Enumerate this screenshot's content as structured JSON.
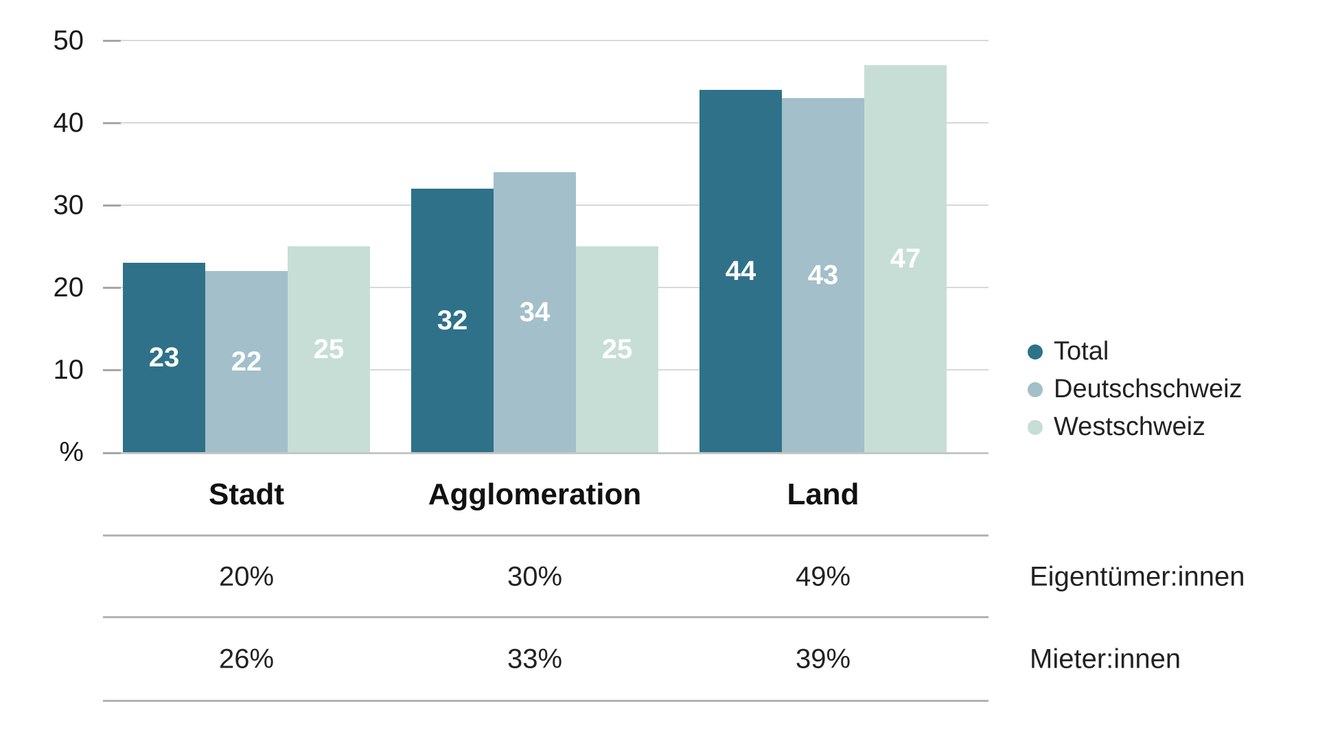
{
  "chart_data": {
    "type": "bar",
    "title": "",
    "categories": [
      "Stadt",
      "Agglomeration",
      "Land"
    ],
    "series": [
      {
        "name": "Total",
        "color": "#2e7189",
        "values": [
          23,
          32,
          44
        ]
      },
      {
        "name": "Deutschschweiz",
        "color": "#a2bfca",
        "values": [
          22,
          34,
          43
        ]
      },
      {
        "name": "Westschweiz",
        "color": "#c7ded6",
        "values": [
          25,
          25,
          47
        ]
      }
    ],
    "y_axis": {
      "ticks": [
        50,
        40,
        30,
        20,
        10
      ],
      "tick_labels": [
        "50",
        "40",
        "30",
        "20",
        "10"
      ],
      "unit_label": "%",
      "min": 0,
      "max": 50,
      "grid": true
    },
    "bar_value_labels_shown": true,
    "legend_position": "right",
    "table": {
      "rows": [
        {
          "label": "Eigentümer:innen",
          "values": [
            "20%",
            "30%",
            "49%"
          ]
        },
        {
          "label": "Mieter:innen",
          "values": [
            "26%",
            "33%",
            "39%"
          ]
        }
      ]
    }
  },
  "colors": {
    "background": "#ffffff",
    "gridline": "#d8d8d8",
    "baseline": "#c6c6c6",
    "axis_tick": "#a6a6a6",
    "table_line": "#b3b3b3",
    "axis_text": "#1a1a1a",
    "category_text": "#111111",
    "bar_value_text": "#ffffff",
    "legend_text": "#222222",
    "table_text": "#222222"
  }
}
